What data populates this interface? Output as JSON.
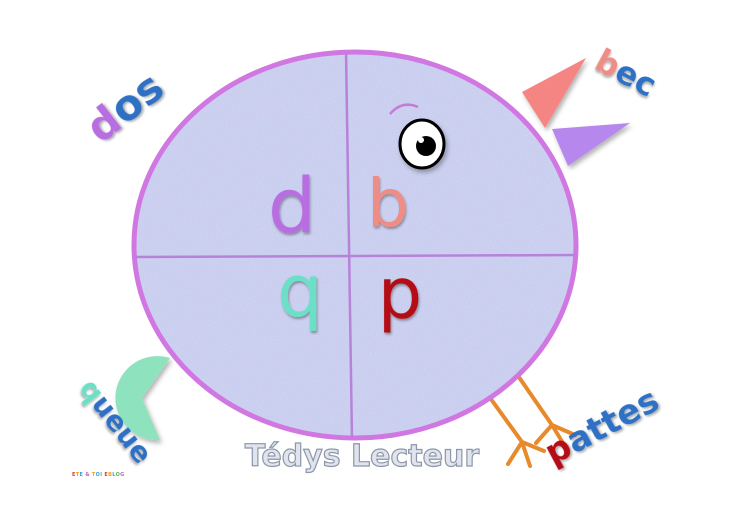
{
  "title": "Tédys Lecteur",
  "credit": "ETE & TOI EBLOG",
  "letters": {
    "top_left": "d",
    "top_right": "b",
    "bottom_left": "q",
    "bottom_right": "p"
  },
  "labels": {
    "dos": "dos",
    "bec": "bec",
    "queue": "queue",
    "pattes": "pattes"
  },
  "colors": {
    "body": "#c2cdee",
    "outline": "#d077e2",
    "divider": "#b783d8",
    "letter_d": "#b86ee0",
    "letter_b": "#ee8c86",
    "letter_q": "#6ce0c6",
    "letter_p": "#b40f12",
    "beak_top": "#f58582",
    "beak_bottom": "#b688ee",
    "tail": "#8fe2be",
    "legs": "#e8892c"
  }
}
